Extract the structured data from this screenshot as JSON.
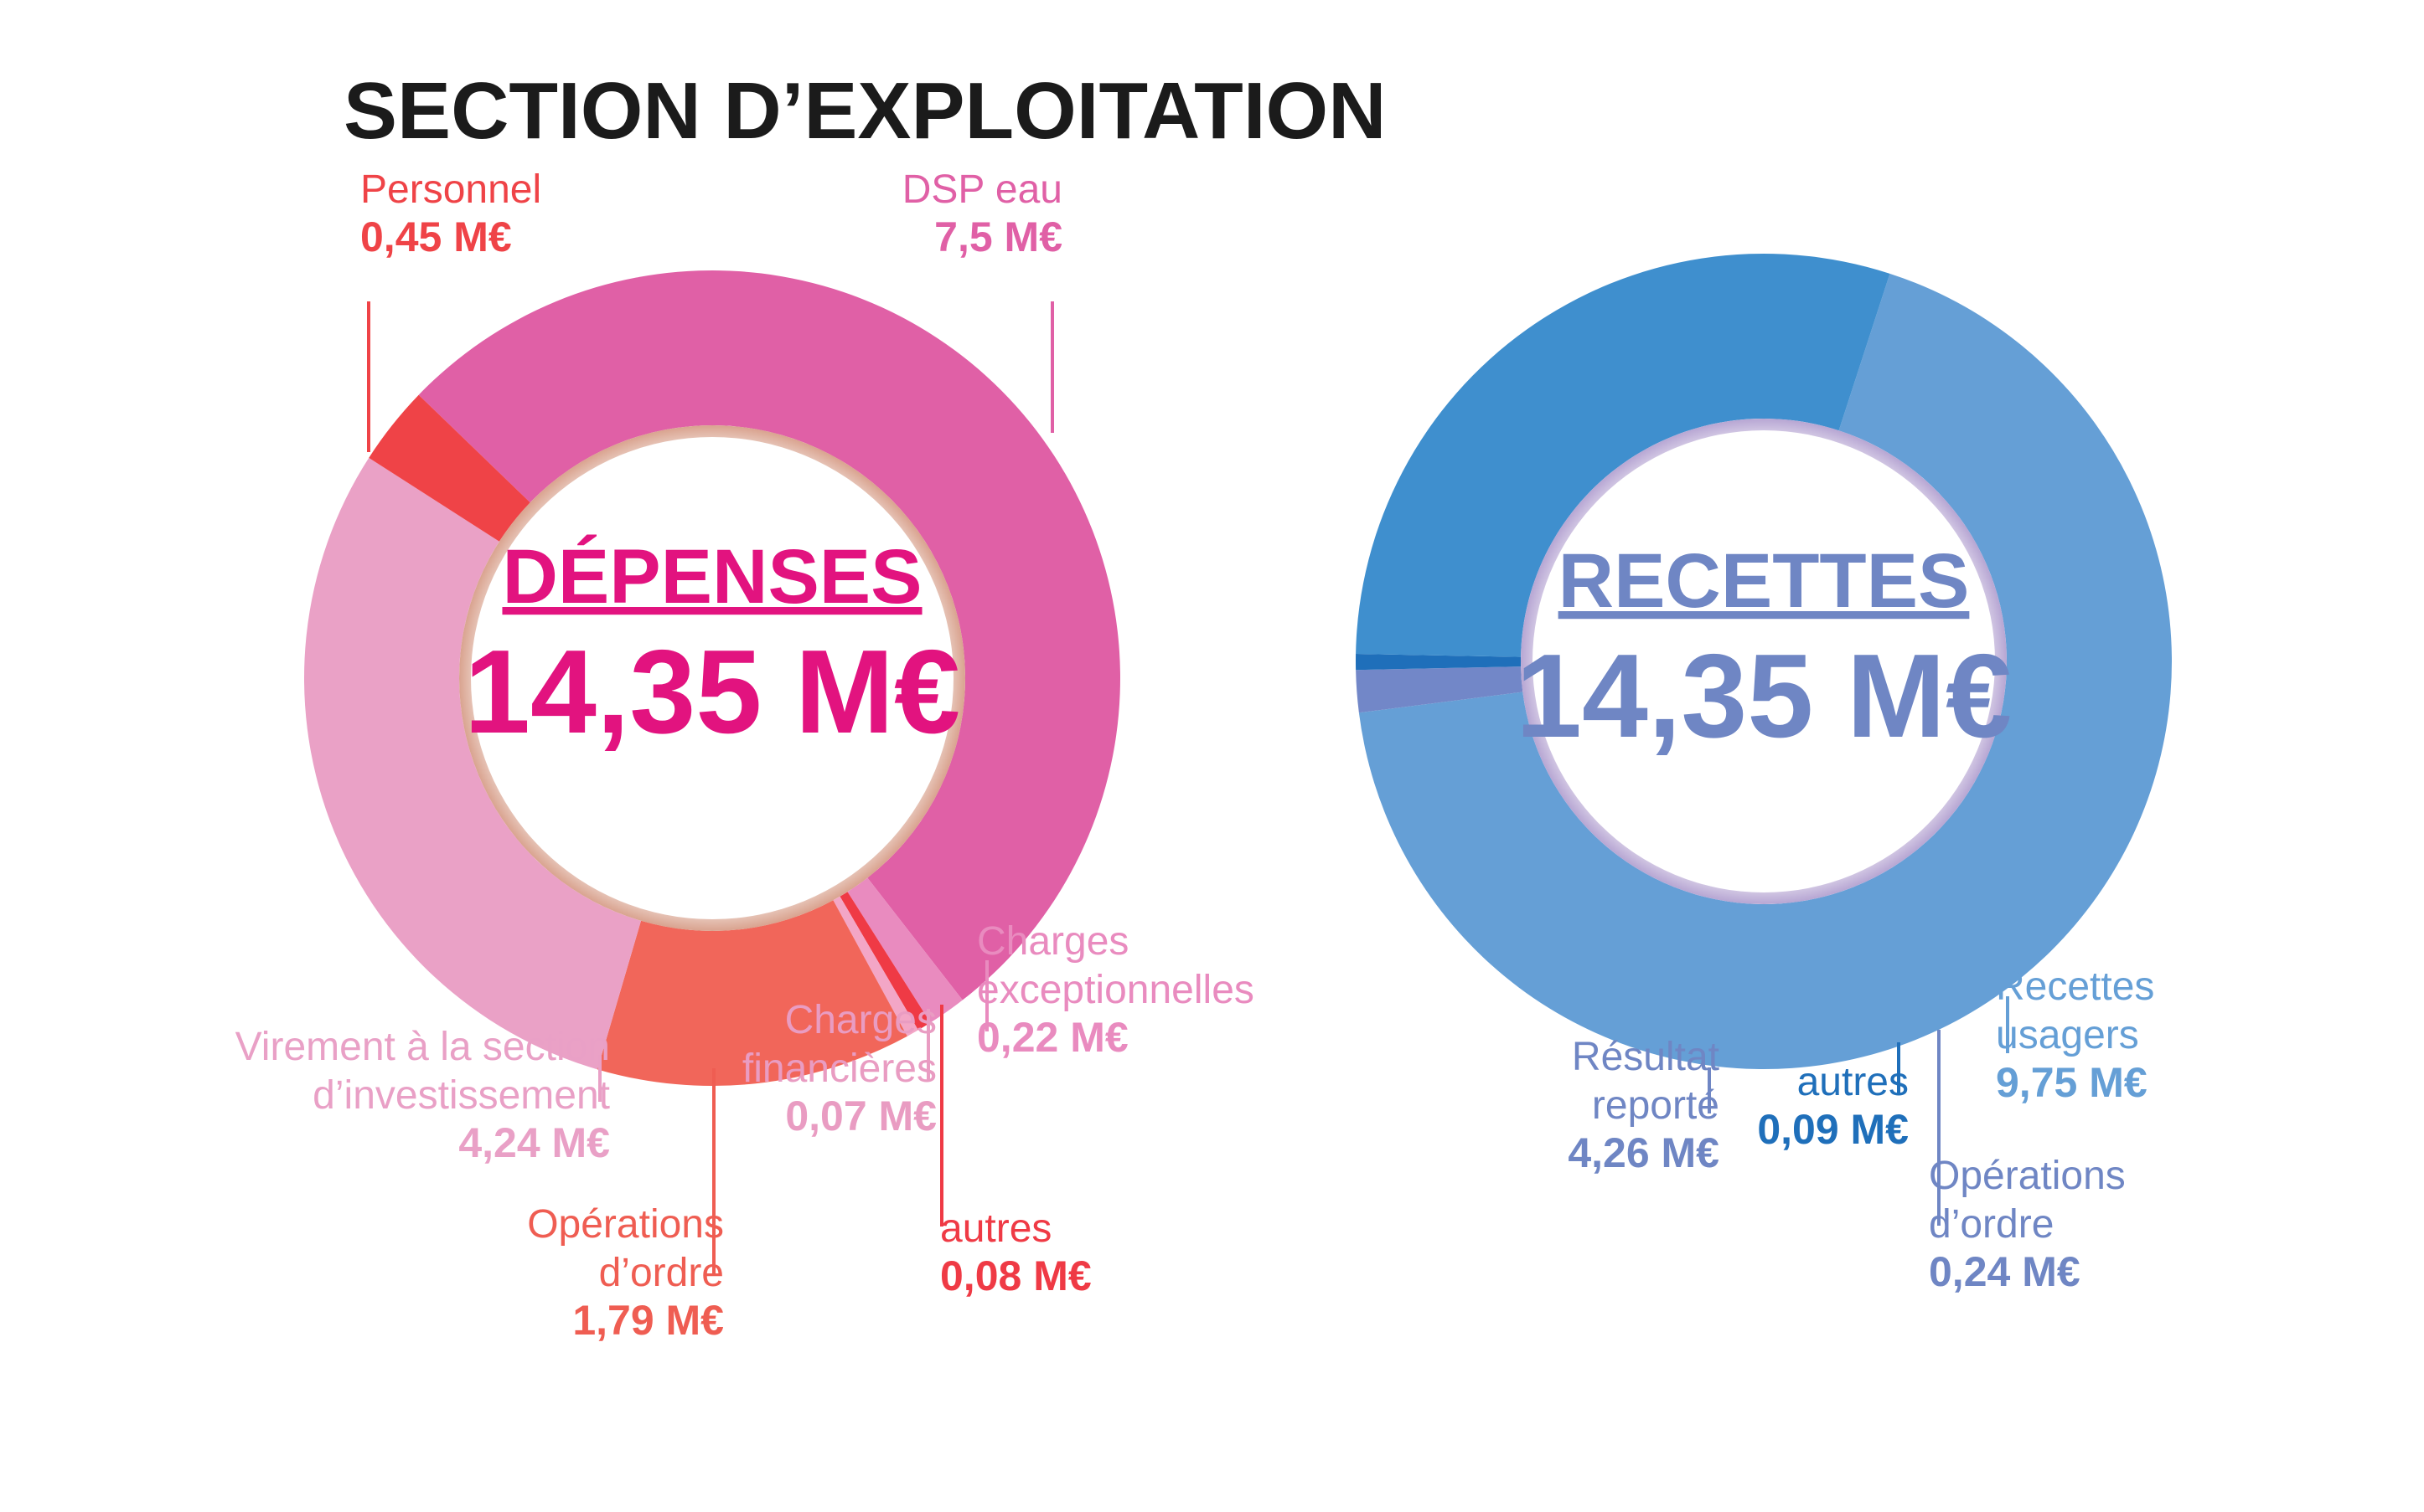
{
  "header": {
    "title": "SECTION D’EXPLOITATION"
  },
  "colors": {
    "title": "#1b1b1b",
    "depenses_center": "#e2137f",
    "recettes_center": "#6f86c4"
  },
  "chart_data": [
    {
      "type": "pie",
      "variant": "donut",
      "name": "depenses",
      "center": {
        "title": "DÉPENSES",
        "total": "14,35 M€"
      },
      "unit": "M€",
      "slices": [
        {
          "label": [
            "DSP eau"
          ],
          "value_label": "7,5 M€",
          "value": 7.5,
          "color": "#e060a6",
          "text_color": "#e060a6"
        },
        {
          "label": [
            "Charges",
            "exceptionnelles"
          ],
          "value_label": "0,22 M€",
          "value": 0.22,
          "color": "#e98bbf",
          "text_color": "#e98bbf"
        },
        {
          "label": [
            "autres"
          ],
          "value_label": "0,08 M€",
          "value": 0.08,
          "color": "#ef3a45",
          "text_color": "#ef3a45"
        },
        {
          "label": [
            "Charges",
            "financières"
          ],
          "value_label": "0,07 M€",
          "value": 0.07,
          "color": "#f3a6c6",
          "text_color": "#e99cc2"
        },
        {
          "label": [
            "Opérations",
            "d’ordre"
          ],
          "value_label": "1,79 M€",
          "value": 1.79,
          "color": "#f1665a",
          "text_color": "#ef5d52"
        },
        {
          "label": [
            "Virement à la section",
            "d’investissement"
          ],
          "value_label": "4,24 M€",
          "value": 4.24,
          "color": "#eaa1c6",
          "text_color": "#e9a0c6"
        },
        {
          "label": [
            "Personnel"
          ],
          "value_label": "0,45 M€",
          "value": 0.45,
          "color": "#ef4347",
          "text_color": "#ef4347"
        }
      ]
    },
    {
      "type": "pie",
      "variant": "donut",
      "name": "recettes",
      "center": {
        "title": "RECETTES",
        "total": "14,35 M€"
      },
      "unit": "M€",
      "slices": [
        {
          "label": [
            "Recettes",
            "usagers"
          ],
          "value_label": "9,75 M€",
          "value": 9.75,
          "color": "#659fd6",
          "text_color": "#659fd6"
        },
        {
          "label": [
            "Opérations",
            "d’ordre"
          ],
          "value_label": "0,24 M€",
          "value": 0.24,
          "color": "#7287c8",
          "text_color": "#6f86c4"
        },
        {
          "label": [
            "autres"
          ],
          "value_label": "0,09 M€",
          "value": 0.09,
          "color": "#1f6fba",
          "text_color": "#1f6fba"
        },
        {
          "label": [
            "Résultat",
            "reporté"
          ],
          "value_label": "4,26 M€",
          "value": 4.26,
          "color": "#3f8fce",
          "text_color": "#6f86c4"
        }
      ]
    }
  ]
}
